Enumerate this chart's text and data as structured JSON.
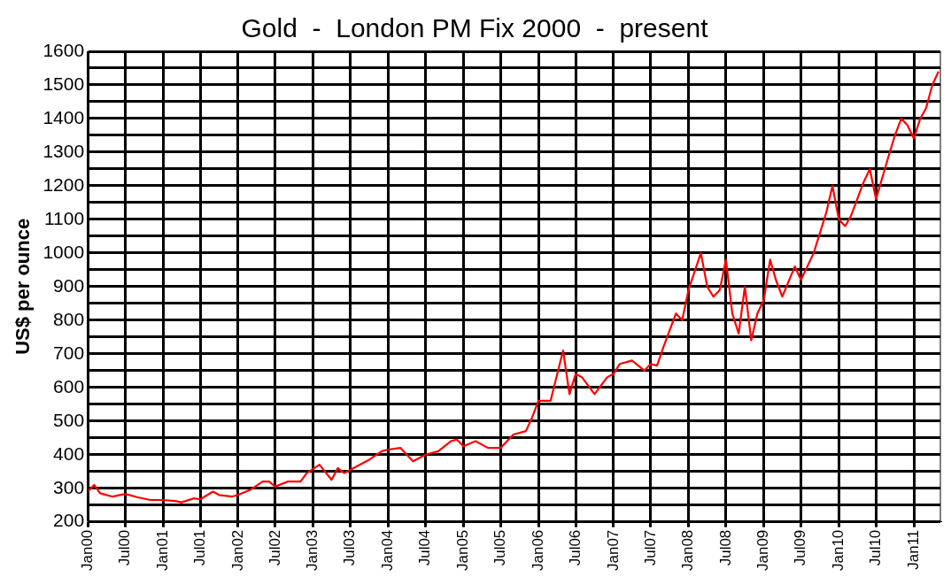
{
  "chart_data": {
    "type": "line",
    "title": "Gold  -  London PM Fix 2000  -  present",
    "ylabel": "US$ per ounce",
    "x": [
      "2000-01",
      "2000-02",
      "2000-03",
      "2000-05",
      "2000-07",
      "2000-09",
      "2000-11",
      "2001-01",
      "2001-03",
      "2001-04",
      "2001-06",
      "2001-07",
      "2001-09",
      "2001-10",
      "2001-12",
      "2002-01",
      "2002-03",
      "2002-05",
      "2002-06",
      "2002-07",
      "2002-09",
      "2002-11",
      "2002-12",
      "2003-02",
      "2003-04",
      "2003-05",
      "2003-06",
      "2003-08",
      "2003-10",
      "2003-12",
      "2004-01",
      "2004-03",
      "2004-05",
      "2004-07",
      "2004-09",
      "2004-11",
      "2004-12",
      "2005-01",
      "2005-03",
      "2005-05",
      "2005-07",
      "2005-09",
      "2005-11",
      "2005-12",
      "2006-01",
      "2006-03",
      "2006-05",
      "2006-06",
      "2006-07",
      "2006-08",
      "2006-10",
      "2006-12",
      "2007-01",
      "2007-02",
      "2007-04",
      "2007-06",
      "2007-07",
      "2007-08",
      "2007-09",
      "2007-11",
      "2007-12",
      "2008-01",
      "2008-03",
      "2008-04",
      "2008-05",
      "2008-06",
      "2008-07",
      "2008-08",
      "2008-09",
      "2008-10",
      "2008-11",
      "2008-12",
      "2009-01",
      "2009-02",
      "2009-03",
      "2009-04",
      "2009-06",
      "2009-07",
      "2009-09",
      "2009-11",
      "2009-12",
      "2010-01",
      "2010-02",
      "2010-03",
      "2010-05",
      "2010-06",
      "2010-07",
      "2010-09",
      "2010-10",
      "2010-11",
      "2010-12",
      "2011-01",
      "2011-02",
      "2011-03",
      "2011-04",
      "2011-05"
    ],
    "series": [
      {
        "color": "#ff0000",
        "values": [
          290,
          310,
          285,
          275,
          283,
          273,
          265,
          265,
          262,
          258,
          270,
          267,
          290,
          280,
          275,
          280,
          295,
          320,
          320,
          305,
          320,
          320,
          345,
          370,
          325,
          360,
          345,
          365,
          385,
          410,
          415,
          420,
          380,
          400,
          410,
          440,
          445,
          425,
          440,
          420,
          420,
          460,
          470,
          510,
          560,
          560,
          710,
          580,
          640,
          630,
          580,
          630,
          640,
          670,
          680,
          650,
          670,
          665,
          720,
          820,
          800,
          890,
          1000,
          900,
          870,
          890,
          980,
          820,
          760,
          900,
          740,
          820,
          860,
          980,
          920,
          870,
          960,
          920,
          1000,
          1120,
          1200,
          1100,
          1080,
          1110,
          1210,
          1250,
          1160,
          1290,
          1350,
          1400,
          1380,
          1340,
          1400,
          1430,
          1500,
          1540
        ]
      }
    ],
    "xlim": [
      "2000-01",
      "2011-05-10"
    ],
    "xticks": [
      {
        "value": "2000-01",
        "label": "Jan00"
      },
      {
        "value": "2000-07",
        "label": "Jul00"
      },
      {
        "value": "2001-01",
        "label": "Jan01"
      },
      {
        "value": "2001-07",
        "label": "Jul01"
      },
      {
        "value": "2002-01",
        "label": "Jan02"
      },
      {
        "value": "2002-07",
        "label": "Jul02"
      },
      {
        "value": "2003-01",
        "label": "Jan03"
      },
      {
        "value": "2003-07",
        "label": "Jul03"
      },
      {
        "value": "2004-01",
        "label": "Jan04"
      },
      {
        "value": "2004-07",
        "label": "Jul04"
      },
      {
        "value": "2005-01",
        "label": "Jan05"
      },
      {
        "value": "2005-07",
        "label": "Jul05"
      },
      {
        "value": "2006-01",
        "label": "Jan06"
      },
      {
        "value": "2006-07",
        "label": "Jul06"
      },
      {
        "value": "2007-01",
        "label": "Jan07"
      },
      {
        "value": "2007-07",
        "label": "Jul07"
      },
      {
        "value": "2008-01",
        "label": "Jan08"
      },
      {
        "value": "2008-07",
        "label": "Jul08"
      },
      {
        "value": "2009-01",
        "label": "Jan09"
      },
      {
        "value": "2009-07",
        "label": "Jul09"
      },
      {
        "value": "2010-01",
        "label": "Jan10"
      },
      {
        "value": "2010-07",
        "label": "Jul10"
      },
      {
        "value": "2011-01",
        "label": "Jan11"
      }
    ],
    "ylim": [
      200,
      1600
    ],
    "yticks": [
      200,
      {
        "value": 250,
        "label": null
      },
      300,
      {
        "value": 350,
        "label": null
      },
      400,
      {
        "value": 450,
        "label": null
      },
      500,
      {
        "value": 550,
        "label": null
      },
      600,
      {
        "value": 650,
        "label": null
      },
      700,
      {
        "value": 750,
        "label": null
      },
      800,
      {
        "value": 850,
        "label": null
      },
      900,
      {
        "value": 950,
        "label": null
      },
      1000,
      {
        "value": 1050,
        "label": null
      },
      1100,
      {
        "value": 1150,
        "label": null
      },
      1200,
      {
        "value": 1250,
        "label": null
      },
      1300,
      {
        "value": 1350,
        "label": null
      },
      1400,
      {
        "value": 1450,
        "label": null
      },
      1500,
      {
        "value": 1550,
        "label": null
      },
      1600
    ],
    "grid": true,
    "marker": "none",
    "line_style": "solid"
  }
}
